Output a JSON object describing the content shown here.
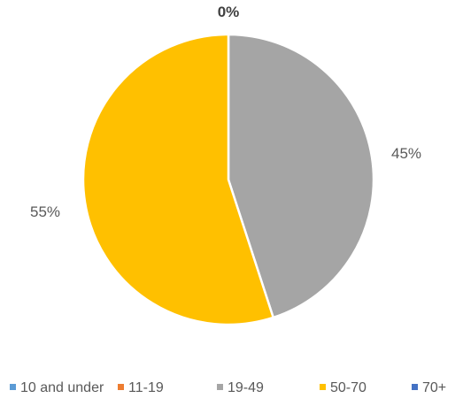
{
  "chart_data": {
    "type": "pie",
    "categories": [
      "10 and under",
      "11-19",
      "19-49",
      "50-70",
      "70+"
    ],
    "values": [
      0,
      0,
      45,
      55,
      0
    ],
    "data_labels": [
      "0%",
      "",
      "45%",
      "55%",
      ""
    ],
    "colors": [
      "#5B9BD5",
      "#ED7D31",
      "#A5A5A5",
      "#FFC000",
      "#4472C4"
    ],
    "title": "",
    "legend_position": "bottom",
    "start_angle_deg": 0,
    "direction": "clockwise",
    "slice_border_color": "#FFFFFF"
  }
}
